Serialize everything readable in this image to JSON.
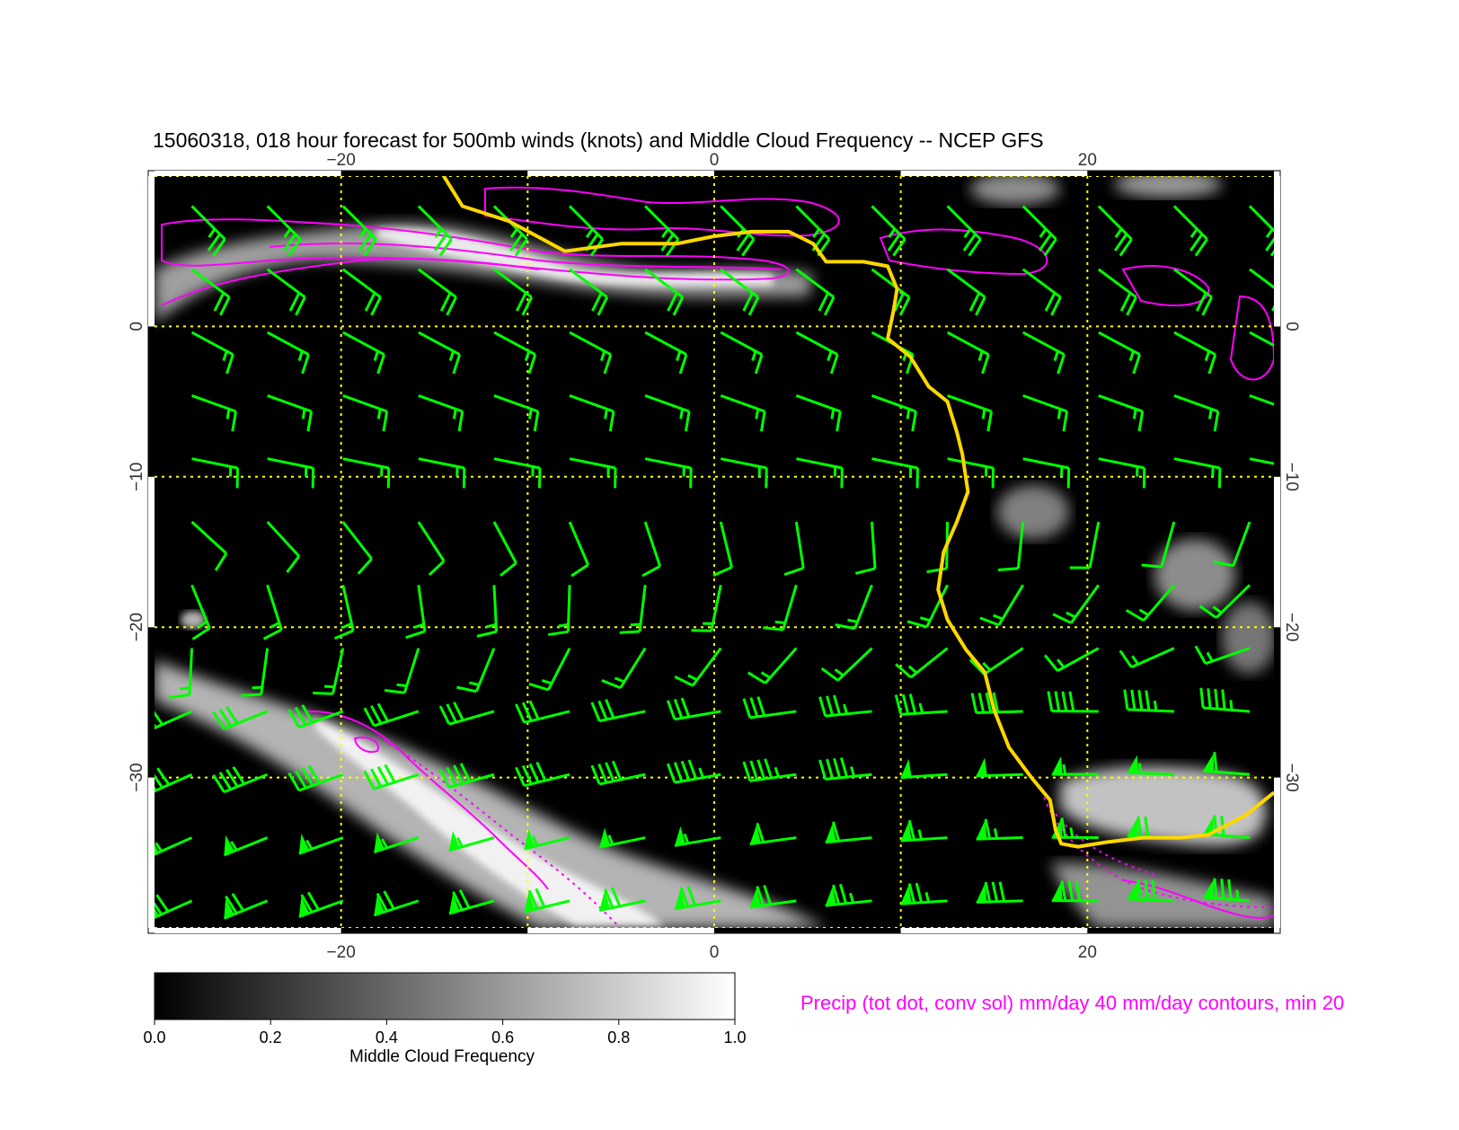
{
  "title": "15060318, 018 hour forecast for 500mb winds (knots) and Middle Cloud Frequency -- NCEP GFS",
  "map": {
    "lon_range": [
      -30,
      30
    ],
    "lat_range": [
      -40,
      10
    ],
    "grid": "dotted yellow every 10 degrees",
    "lon_ticks": [
      {
        "value": -20,
        "label": "−20"
      },
      {
        "value": 0,
        "label": "0"
      },
      {
        "value": 20,
        "label": "20"
      }
    ],
    "lat_ticks": [
      {
        "value": 0,
        "label": "0"
      },
      {
        "value": -10,
        "label": "−10"
      },
      {
        "value": -20,
        "label": "−20"
      },
      {
        "value": -30,
        "label": "−30"
      }
    ],
    "colors": {
      "background": "#000000",
      "grid": "#ffff00",
      "wind_barbs": "#00ff00",
      "precip_contours": "#ff00ff",
      "coastline": "#ffd700",
      "cloud": "#e0e0e0"
    },
    "coastline": [
      [
        -14.5,
        10
      ],
      [
        -13.5,
        8
      ],
      [
        -11,
        7
      ],
      [
        -8,
        5
      ],
      [
        -5,
        5.5
      ],
      [
        -2,
        5.5
      ],
      [
        0,
        6
      ],
      [
        2,
        6.3
      ],
      [
        4,
        6.3
      ],
      [
        5.3,
        5.5
      ],
      [
        6,
        4.3
      ],
      [
        8,
        4.3
      ],
      [
        9.3,
        4
      ],
      [
        9.8,
        2.5
      ],
      [
        9.6,
        1
      ],
      [
        9.3,
        -0.8
      ],
      [
        10.5,
        -2
      ],
      [
        11.5,
        -4
      ],
      [
        12.5,
        -5
      ],
      [
        13,
        -7
      ],
      [
        13.3,
        -8.5
      ],
      [
        13.6,
        -11
      ],
      [
        13,
        -13
      ],
      [
        12.3,
        -15
      ],
      [
        12,
        -17.5
      ],
      [
        12.5,
        -19.5
      ],
      [
        13.5,
        -21.5
      ],
      [
        14.5,
        -23
      ],
      [
        15,
        -25.5
      ],
      [
        15.8,
        -28
      ],
      [
        17,
        -30
      ],
      [
        18,
        -31.5
      ],
      [
        18.3,
        -33.5
      ],
      [
        18.6,
        -34.4
      ],
      [
        19.5,
        -34.6
      ],
      [
        21,
        -34.3
      ],
      [
        23,
        -34
      ],
      [
        25,
        -34
      ],
      [
        26.5,
        -33.8
      ],
      [
        28.5,
        -32.5
      ],
      [
        30,
        -31
      ]
    ],
    "clouds": [
      {
        "region": "north-west band",
        "frequency": 0.9
      },
      {
        "region": "south-west frontal band",
        "frequency": 1.0
      },
      {
        "region": "southern Africa",
        "frequency": 0.8
      },
      {
        "region": "south-east Africa",
        "frequency": 0.7
      }
    ],
    "precip_note": "Precip (tot dot, conv sol) mm/day 40 mm/day contours, min 20"
  },
  "colorbar": {
    "label": "Middle Cloud Frequency",
    "ticks": [
      "0.0",
      "0.2",
      "0.4",
      "0.6",
      "0.8",
      "1.0"
    ],
    "range": [
      0.0,
      1.0
    ]
  }
}
